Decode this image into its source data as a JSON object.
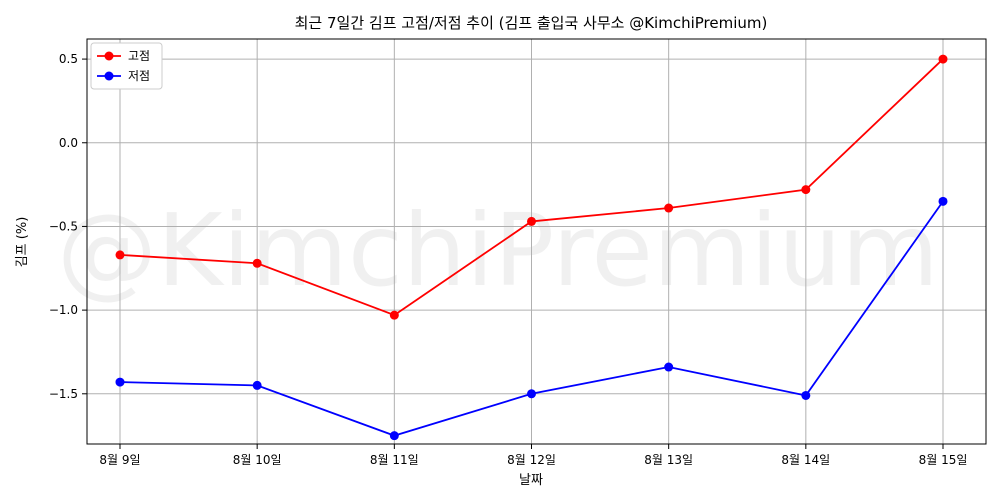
{
  "chart_data": {
    "type": "line",
    "title": "최근 7일간 김프 고점/저점 추이 (김프 출입국 사무소 @KimchiPremium)",
    "xlabel": "날짜",
    "ylabel": "김프 (%)",
    "categories": [
      "8월 9일",
      "8월 10일",
      "8월 11일",
      "8월 12일",
      "8월 13일",
      "8월 14일",
      "8월 15일"
    ],
    "series": [
      {
        "name": "고점",
        "color": "#ff0000",
        "values": [
          -0.67,
          -0.72,
          -1.03,
          -0.47,
          -0.39,
          -0.28,
          0.5
        ]
      },
      {
        "name": "저점",
        "color": "#0000ff",
        "values": [
          -1.43,
          -1.45,
          -1.75,
          -1.5,
          -1.34,
          -1.51,
          -0.35
        ]
      }
    ],
    "ylim": [
      -1.8,
      0.62
    ],
    "yticks": [
      0.5,
      0.0,
      -0.5,
      -1.0,
      -1.5
    ],
    "ytick_labels": [
      "0.5",
      "0.0",
      "−0.5",
      "−1.0",
      "−1.5"
    ],
    "grid": true,
    "legend_position": "top-left",
    "watermark": "@KimchiPremium"
  }
}
